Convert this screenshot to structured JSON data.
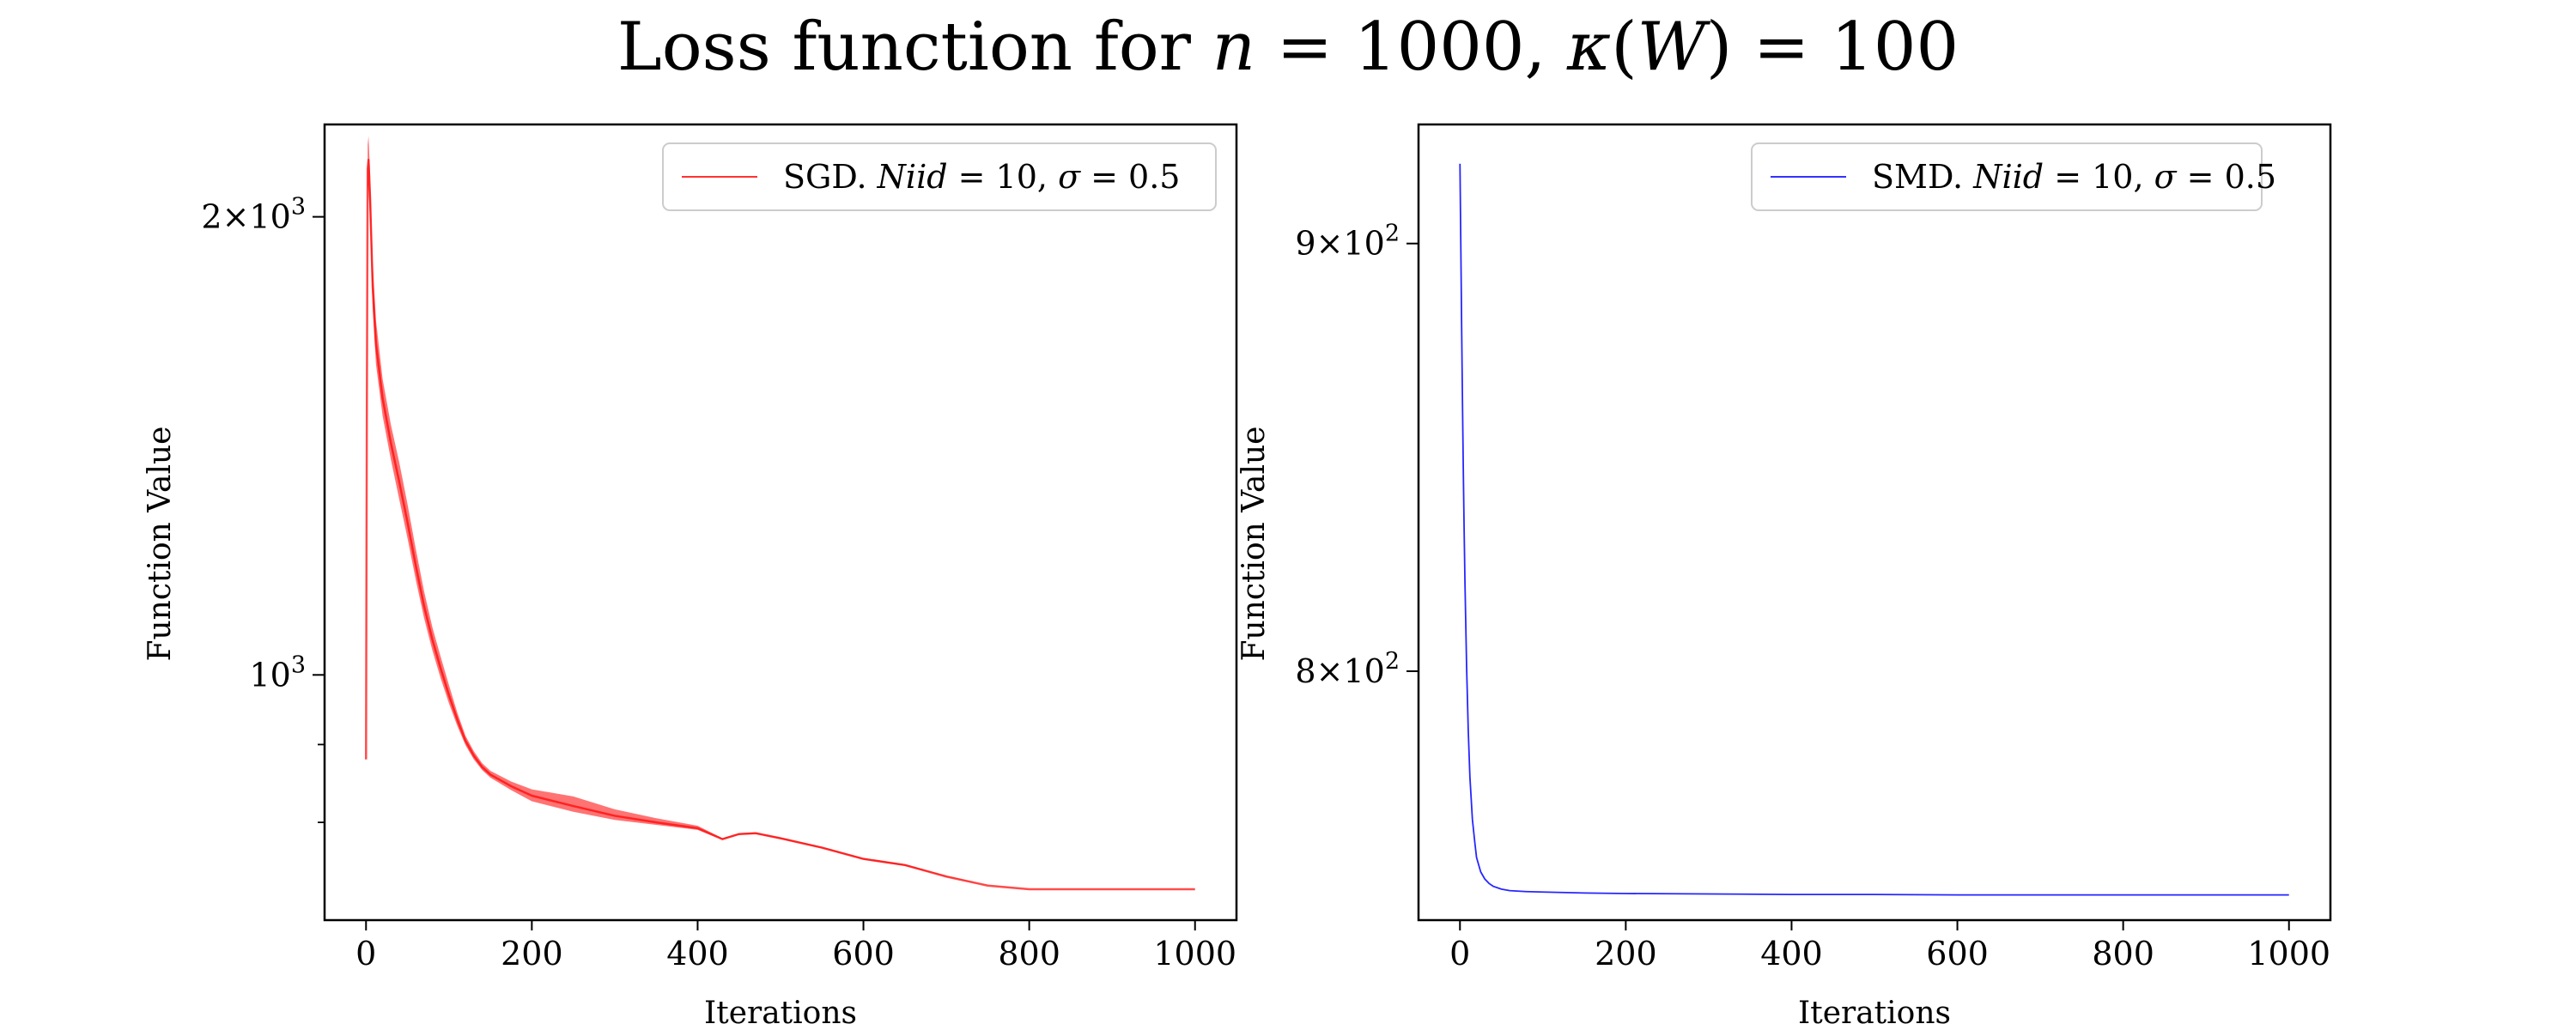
{
  "title": {
    "prefix": "Loss function for ",
    "var_n": "n",
    "eq1": " = 1000, ",
    "kappa": "κ",
    "paren_open": "(",
    "var_w": "W",
    "paren_close": ")",
    "eq2": " = 100"
  },
  "chart_data": [
    {
      "type": "line",
      "xlabel": "Iterations",
      "ylabel": "Function Value",
      "xlim": [
        -50,
        1050
      ],
      "ylim": [
        690,
        2300
      ],
      "yscale": "log",
      "x_ticks": [
        0,
        200,
        400,
        600,
        800,
        1000
      ],
      "x_tick_labels": [
        "0",
        "200",
        "400",
        "600",
        "800",
        "1000"
      ],
      "y_major_ticks": [
        1000,
        2000
      ],
      "y_tick_labels": [
        {
          "value": 2000,
          "mantissa": "2",
          "base": "10",
          "exp": "3"
        },
        {
          "value": 1000,
          "mantissa": "",
          "base": "10",
          "exp": "3"
        }
      ],
      "y_minor_ticks": [
        800,
        900,
        3000
      ],
      "grid": false,
      "legend": {
        "position": "upper right",
        "method": "SGD.",
        "niid_label": "Niid",
        "niid_value": "10",
        "sigma_label": "σ",
        "sigma_value": "0.5"
      },
      "series": [
        {
          "name": "SGD. Niid = 10, σ = 0.5",
          "color": "#ff0000",
          "band": true,
          "x": [
            0,
            1,
            2,
            3,
            5,
            8,
            12,
            20,
            30,
            40,
            50,
            60,
            70,
            80,
            90,
            100,
            110,
            120,
            130,
            140,
            150,
            175,
            200,
            250,
            300,
            350,
            400,
            430,
            450,
            470,
            500,
            550,
            600,
            650,
            700,
            750,
            800,
            850,
            900,
            950,
            1000
          ],
          "y": [
            880,
            1500,
            2150,
            2180,
            2050,
            1800,
            1650,
            1520,
            1420,
            1340,
            1260,
            1180,
            1110,
            1055,
            1010,
            970,
            935,
            905,
            885,
            870,
            860,
            845,
            833,
            820,
            808,
            800,
            793,
            780,
            786,
            787,
            781,
            770,
            757,
            750,
            737,
            727,
            723,
            723,
            723,
            723,
            723
          ],
          "y_low": [
            880,
            1450,
            2080,
            2100,
            1980,
            1740,
            1600,
            1480,
            1385,
            1305,
            1230,
            1155,
            1090,
            1038,
            995,
            958,
            926,
            899,
            880,
            866,
            856,
            840,
            826,
            813,
            803,
            797,
            791,
            779,
            785,
            786,
            780,
            769,
            756,
            749,
            737,
            727,
            723,
            723,
            723,
            723,
            723
          ],
          "y_high": [
            880,
            1550,
            2230,
            2260,
            2130,
            1870,
            1710,
            1565,
            1460,
            1380,
            1295,
            1210,
            1135,
            1075,
            1028,
            985,
            945,
            912,
            891,
            875,
            865,
            851,
            841,
            832,
            816,
            805,
            796,
            781,
            787,
            788,
            782,
            771,
            758,
            751,
            738,
            727,
            723,
            723,
            723,
            723,
            723
          ]
        }
      ]
    },
    {
      "type": "line",
      "xlabel": "Iterations",
      "ylabel": "Function Value",
      "xlim": [
        -50,
        1050
      ],
      "ylim": [
        747,
        930
      ],
      "yscale": "log",
      "x_ticks": [
        0,
        200,
        400,
        600,
        800,
        1000
      ],
      "x_tick_labels": [
        "0",
        "200",
        "400",
        "600",
        "800",
        "1000"
      ],
      "y_major_ticks": [
        900,
        800
      ],
      "y_tick_labels": [
        {
          "value": 900,
          "mantissa": "9",
          "base": "10",
          "exp": "2"
        },
        {
          "value": 800,
          "mantissa": "8",
          "base": "10",
          "exp": "2"
        }
      ],
      "y_minor_ticks": [],
      "grid": false,
      "legend": {
        "position": "upper right",
        "method": "SMD.",
        "niid_label": "Niid",
        "niid_value": "10",
        "sigma_label": "σ",
        "sigma_value": "0.5"
      },
      "series": [
        {
          "name": "SMD. Niid = 10, σ = 0.5",
          "color": "#0000ff",
          "band": false,
          "x": [
            0,
            1,
            2,
            3,
            4,
            5,
            6,
            8,
            10,
            12,
            15,
            18,
            20,
            25,
            30,
            35,
            40,
            50,
            60,
            80,
            100,
            150,
            200,
            300,
            400,
            500,
            600,
            700,
            800,
            900,
            1000
          ],
          "y": [
            920,
            900,
            880,
            862,
            846,
            832,
            820,
            801,
            787,
            777,
            768,
            763,
            760,
            757,
            755.5,
            754.6,
            754,
            753.4,
            753.1,
            752.9,
            752.8,
            752.6,
            752.5,
            752.4,
            752.3,
            752.3,
            752.2,
            752.2,
            752.2,
            752.2,
            752.2
          ]
        }
      ]
    }
  ]
}
